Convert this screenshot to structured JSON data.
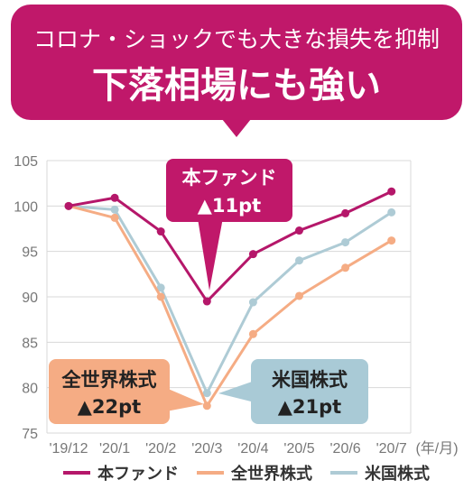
{
  "headline": {
    "line1": "コロナ・ショックでも大きな損失を抑制",
    "line2": "下落相場にも強い",
    "color": "#c0186a"
  },
  "callouts": {
    "fund": {
      "line1": "本ファンド",
      "line2": "▲11pt",
      "color": "#c0186a",
      "text_color": "#ffffff"
    },
    "world": {
      "line1": "全世界株式",
      "line2": "▲22pt",
      "color": "#f5ac84",
      "text_color": "#222222"
    },
    "us": {
      "line1": "米国株式",
      "line2": "▲21pt",
      "color": "#a9cad6",
      "text_color": "#222222"
    }
  },
  "chart_data": {
    "type": "line",
    "categories": [
      "'19/12",
      "'20/1",
      "'20/2",
      "'20/3",
      "'20/4",
      "'20/5",
      "'20/6",
      "'20/7"
    ],
    "x_unit_label": "(年/月)",
    "ylim": [
      75,
      105
    ],
    "yticks": [
      75,
      80,
      85,
      90,
      95,
      100,
      105
    ],
    "grid": true,
    "legend_position": "bottom",
    "series": [
      {
        "name": "本ファンド",
        "color": "#b5176a",
        "values": [
          100,
          100.9,
          97.2,
          89.5,
          94.7,
          97.3,
          99.2,
          101.6
        ]
      },
      {
        "name": "全世界株式",
        "color": "#f5ac84",
        "values": [
          100,
          98.7,
          90.0,
          78.0,
          85.9,
          90.1,
          93.2,
          96.2
        ]
      },
      {
        "name": "米国株式",
        "color": "#aecbd5",
        "values": [
          100,
          99.6,
          91.0,
          79.4,
          89.4,
          94.0,
          96.0,
          99.3
        ]
      }
    ]
  }
}
